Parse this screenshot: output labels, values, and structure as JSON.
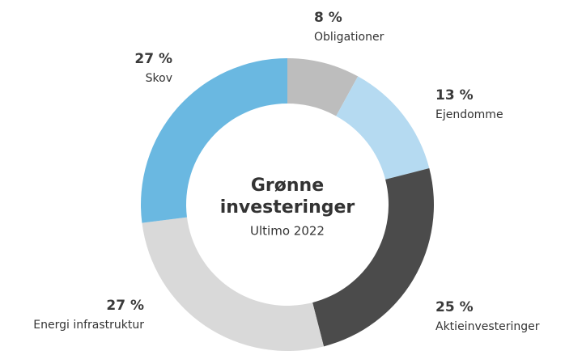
{
  "chart_data": {
    "type": "donut",
    "title": [
      "Grønne",
      "investeringer"
    ],
    "subtitle": "Ultimo 2022",
    "categories": [
      "Obligationer",
      "Ejendomme",
      "Aktieinvesteringer",
      "Energi infrastruktur",
      "Skov"
    ],
    "values": [
      8,
      13,
      25,
      27,
      27
    ],
    "value_labels": [
      "8 %",
      "13 %",
      "25 %",
      "27 %",
      "27 %"
    ],
    "colors": [
      "#bdbdbd",
      "#b5daf1",
      "#4b4b4b",
      "#d9d9d9",
      "#6ab8e1"
    ]
  }
}
